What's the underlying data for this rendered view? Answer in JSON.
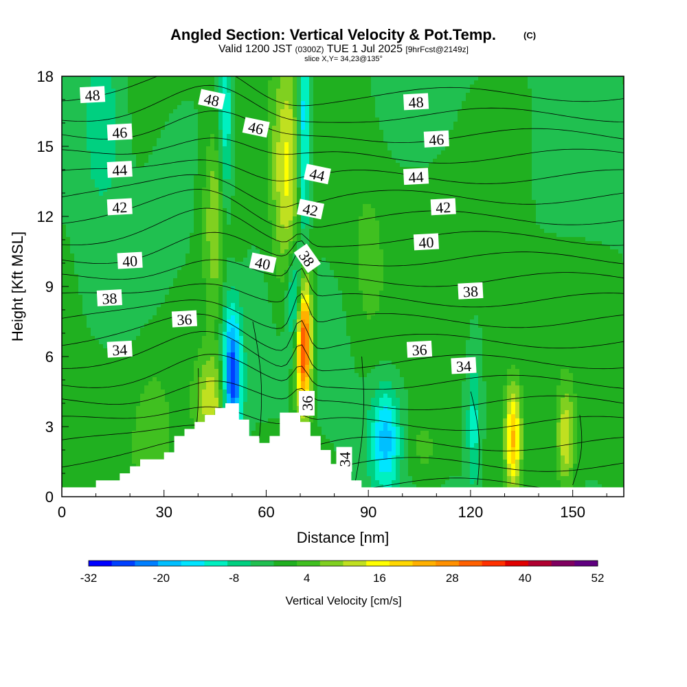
{
  "header": {
    "title": "Angled Section: Vertical Velocity & Pot.Temp.",
    "title_mark": "(C)",
    "valid_main": "Valid 1200 JST",
    "valid_utc": "(0300Z)",
    "valid_date": "TUE 1 Jul 2025",
    "forecast": "[9hrFcst@2149z]",
    "slice": "slice X,Y= 34,23@135°"
  },
  "chart_data": {
    "type": "heatmap",
    "xlabel": "Distance [nm]",
    "ylabel": "Height [Kft MSL]",
    "xlim": [
      0,
      165
    ],
    "ylim": [
      0,
      18
    ],
    "x_ticks": [
      "0",
      "30",
      "60",
      "90",
      "120",
      "150"
    ],
    "y_ticks": [
      "0",
      "3",
      "6",
      "9",
      "12",
      "15",
      "18"
    ],
    "colorbar": {
      "label": "Vertical Velocity [cm/s]",
      "range": [
        -32,
        52
      ],
      "step": 4,
      "tick_labels": [
        "-32",
        "-20",
        "-8",
        "4",
        "16",
        "28",
        "40",
        "52"
      ],
      "colors": [
        "#0000ff",
        "#0040ff",
        "#007fff",
        "#00bfff",
        "#00e5ff",
        "#00f0c0",
        "#00d080",
        "#20c050",
        "#20b020",
        "#40c020",
        "#80d020",
        "#c0e020",
        "#ffff00",
        "#ffd700",
        "#ffb000",
        "#ff9000",
        "#ff6000",
        "#ff3000",
        "#e00000",
        "#b00030",
        "#800060",
        "#600080"
      ]
    },
    "terrain_kft": [
      [
        0,
        0.4
      ],
      [
        10,
        0.4
      ],
      [
        10,
        0.7
      ],
      [
        17,
        0.7
      ],
      [
        17,
        1.0
      ],
      [
        20,
        1.0
      ],
      [
        20,
        1.3
      ],
      [
        23,
        1.3
      ],
      [
        23,
        1.6
      ],
      [
        30,
        1.6
      ],
      [
        30,
        1.9
      ],
      [
        33,
        1.9
      ],
      [
        33,
        2.6
      ],
      [
        36,
        2.6
      ],
      [
        36,
        2.9
      ],
      [
        39,
        2.9
      ],
      [
        39,
        3.2
      ],
      [
        42,
        3.2
      ],
      [
        42,
        3.5
      ],
      [
        45,
        3.5
      ],
      [
        45,
        3.8
      ],
      [
        48,
        3.8
      ],
      [
        48,
        4.0
      ],
      [
        52,
        4.0
      ],
      [
        52,
        3.3
      ],
      [
        55,
        3.3
      ],
      [
        55,
        2.6
      ],
      [
        58,
        2.6
      ],
      [
        58,
        2.3
      ],
      [
        61,
        2.3
      ],
      [
        61,
        2.6
      ],
      [
        64,
        2.6
      ],
      [
        64,
        3.6
      ],
      [
        70,
        3.6
      ],
      [
        70,
        3.2
      ],
      [
        73,
        3.2
      ],
      [
        73,
        2.6
      ],
      [
        76,
        2.6
      ],
      [
        76,
        2.0
      ],
      [
        79,
        2.0
      ],
      [
        79,
        1.4
      ],
      [
        82,
        1.4
      ],
      [
        82,
        1.1
      ],
      [
        85,
        1.1
      ],
      [
        85,
        0.7
      ],
      [
        88,
        0.7
      ],
      [
        88,
        0.4
      ],
      [
        165,
        0.4
      ]
    ],
    "velocity_features": [
      {
        "x": 46,
        "y": 12,
        "sx": 3,
        "sy": 2.8,
        "w": 14
      },
      {
        "x": 66,
        "y": 13.5,
        "sx": 3,
        "sy": 3.5,
        "w": 14
      },
      {
        "x": 44,
        "y": 4,
        "sx": 3.5,
        "sy": 1.5,
        "w": 14
      },
      {
        "x": 71,
        "y": 6.8,
        "sx": 1.6,
        "sy": 2.2,
        "w": 42
      },
      {
        "x": 50,
        "y": 5,
        "sx": 2,
        "sy": 2.2,
        "w": -28
      },
      {
        "x": 69,
        "y": 8.5,
        "sx": 1.8,
        "sy": 1.5,
        "w": -18
      },
      {
        "x": 48,
        "y": 15,
        "sx": 1.6,
        "sy": 4,
        "w": -14
      },
      {
        "x": 71,
        "y": 15.5,
        "sx": 1.4,
        "sy": 4,
        "w": -18
      },
      {
        "x": 95,
        "y": 2.5,
        "sx": 3,
        "sy": 1.5,
        "w": -16
      },
      {
        "x": 132.5,
        "y": 2.5,
        "sx": 1.6,
        "sy": 1.6,
        "w": 22
      },
      {
        "x": 148,
        "y": 2.5,
        "sx": 1.8,
        "sy": 1.5,
        "w": 14
      },
      {
        "x": 106,
        "y": 2,
        "sx": 4,
        "sy": 1.2,
        "w": 6
      },
      {
        "x": 90,
        "y": 10,
        "sx": 3,
        "sy": 2.5,
        "w": 4
      },
      {
        "x": 12,
        "y": 16,
        "sx": 4,
        "sy": 2.5,
        "w": -8
      },
      {
        "x": 27,
        "y": 3,
        "sx": 4,
        "sy": 2,
        "w": 5
      },
      {
        "x": 121,
        "y": 3,
        "sx": 1.5,
        "sy": 2,
        "w": -10
      }
    ],
    "isotherms_c": [
      30,
      31,
      32,
      33,
      34,
      35,
      36,
      37,
      38,
      39,
      40,
      41,
      42,
      43,
      44,
      45,
      46,
      47,
      48,
      49
    ],
    "isotherm_labels": [
      {
        "text": "48",
        "x": 9,
        "y": 17.2
      },
      {
        "text": "48",
        "x": 44,
        "y": 17.0
      },
      {
        "text": "48",
        "x": 104,
        "y": 16.9
      },
      {
        "text": "46",
        "x": 17,
        "y": 15.6
      },
      {
        "text": "46",
        "x": 57,
        "y": 15.8
      },
      {
        "text": "46",
        "x": 110,
        "y": 15.3
      },
      {
        "text": "44",
        "x": 17,
        "y": 14.0
      },
      {
        "text": "44",
        "x": 75,
        "y": 13.8
      },
      {
        "text": "44",
        "x": 104,
        "y": 13.7
      },
      {
        "text": "42",
        "x": 17,
        "y": 12.4
      },
      {
        "text": "42",
        "x": 73,
        "y": 12.3
      },
      {
        "text": "42",
        "x": 112,
        "y": 12.4
      },
      {
        "text": "40",
        "x": 20,
        "y": 10.1
      },
      {
        "text": "40",
        "x": 59,
        "y": 10.0
      },
      {
        "text": "40",
        "x": 107,
        "y": 10.9
      },
      {
        "text": "38",
        "x": 14,
        "y": 8.5
      },
      {
        "text": "38",
        "x": 72,
        "y": 10.2
      },
      {
        "text": "38",
        "x": 120,
        "y": 8.8
      },
      {
        "text": "36",
        "x": 36,
        "y": 7.6
      },
      {
        "text": "36",
        "x": 105,
        "y": 6.3
      },
      {
        "text": "36",
        "x": 72,
        "y": 4.0
      },
      {
        "text": "34",
        "x": 17,
        "y": 6.3
      },
      {
        "text": "34",
        "x": 118,
        "y": 5.6
      },
      {
        "text": "34",
        "x": 83,
        "y": 1.6
      }
    ]
  }
}
